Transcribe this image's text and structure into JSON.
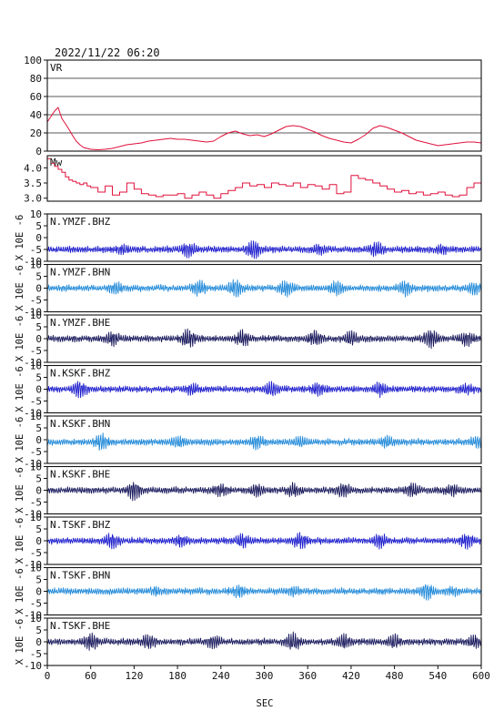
{
  "chart_data": {
    "type": "line",
    "title": "2022/11/22 06:20",
    "xlabel": "SEC",
    "xlim": [
      0,
      600
    ],
    "xticks": [
      0,
      60,
      120,
      180,
      240,
      300,
      360,
      420,
      480,
      540,
      600
    ],
    "vr_panel": {
      "label": "VR",
      "ylim": [
        0,
        100
      ],
      "yticks": [
        0,
        20,
        40,
        60,
        80,
        100
      ],
      "color": "#e0103a",
      "x": [
        0,
        5,
        10,
        15,
        20,
        25,
        30,
        35,
        40,
        45,
        50,
        55,
        60,
        70,
        80,
        90,
        100,
        110,
        120,
        130,
        140,
        150,
        160,
        170,
        180,
        190,
        200,
        210,
        220,
        230,
        240,
        250,
        260,
        270,
        280,
        290,
        300,
        310,
        320,
        330,
        340,
        350,
        360,
        370,
        380,
        390,
        400,
        410,
        420,
        430,
        440,
        450,
        460,
        470,
        480,
        490,
        500,
        510,
        520,
        530,
        540,
        550,
        560,
        570,
        580,
        590,
        600
      ],
      "values": [
        32,
        38,
        44,
        48,
        36,
        30,
        24,
        17,
        11,
        7,
        4,
        3,
        2,
        1.5,
        2,
        3,
        5,
        7,
        8,
        9,
        11,
        12,
        13,
        14,
        13,
        13,
        12,
        11,
        10,
        11,
        16,
        20,
        22,
        19,
        17,
        18,
        16,
        19,
        23,
        27,
        28,
        27,
        24,
        21,
        17,
        14,
        12,
        10,
        9,
        13,
        18,
        25,
        28,
        26,
        23,
        20,
        16,
        12,
        10,
        8,
        6,
        7,
        8,
        9,
        10,
        10,
        9
      ]
    },
    "mw_panel": {
      "label": "Mw",
      "ylim": [
        2.9,
        4.4
      ],
      "yticks": [
        3.0,
        3.5,
        4.0
      ],
      "ytick_labels": [
        "3.0",
        "3.5",
        "4.0"
      ],
      "color": "#e0103a",
      "x": [
        0,
        5,
        10,
        15,
        20,
        25,
        30,
        35,
        40,
        45,
        50,
        55,
        60,
        70,
        80,
        90,
        100,
        110,
        120,
        130,
        140,
        150,
        160,
        170,
        180,
        190,
        200,
        210,
        220,
        230,
        240,
        250,
        260,
        270,
        280,
        290,
        300,
        310,
        320,
        330,
        340,
        350,
        360,
        370,
        380,
        390,
        400,
        410,
        420,
        430,
        440,
        450,
        460,
        470,
        480,
        490,
        500,
        510,
        520,
        530,
        540,
        550,
        560,
        570,
        580,
        590,
        600
      ],
      "values": [
        4.3,
        4.15,
        4.05,
        3.95,
        3.85,
        3.7,
        3.6,
        3.55,
        3.5,
        3.45,
        3.5,
        3.4,
        3.35,
        3.2,
        3.4,
        3.1,
        3.2,
        3.5,
        3.3,
        3.15,
        3.1,
        3.05,
        3.1,
        3.1,
        3.15,
        3.0,
        3.1,
        3.2,
        3.1,
        3.0,
        3.15,
        3.25,
        3.35,
        3.5,
        3.4,
        3.45,
        3.35,
        3.5,
        3.45,
        3.4,
        3.5,
        3.35,
        3.45,
        3.4,
        3.3,
        3.45,
        3.15,
        3.2,
        3.75,
        3.65,
        3.6,
        3.5,
        3.4,
        3.3,
        3.2,
        3.25,
        3.15,
        3.2,
        3.1,
        3.15,
        3.2,
        3.1,
        3.05,
        3.1,
        3.35,
        3.5,
        3.4
      ]
    },
    "trace_panels": {
      "ylim": [
        -10,
        10
      ],
      "yticks": [
        -10,
        -5,
        0,
        5,
        10
      ],
      "ytick_labels": [
        "-10",
        "-5",
        "0",
        "5",
        "10"
      ],
      "ylabel": "X 10E -6",
      "colors": {
        "bhz": "#1a1acc",
        "bhn": "#1e88d8",
        "bhe": "#15155a"
      },
      "series": [
        {
          "name": "N.YMZF.BHZ",
          "offset": -5,
          "color_key": "bhz",
          "seed": 11,
          "bursts": [
            [
              105,
              1.2
            ],
            [
              195,
              2.5
            ],
            [
              285,
              3.2
            ],
            [
              375,
              1.5
            ],
            [
              455,
              2.2
            ],
            [
              545,
              1.2
            ]
          ]
        },
        {
          "name": "N.YMZF.BHN",
          "offset": 0,
          "color_key": "bhn",
          "seed": 23,
          "bursts": [
            [
              95,
              1.6
            ],
            [
              210,
              2.6
            ],
            [
              260,
              2.8
            ],
            [
              330,
              2.8
            ],
            [
              400,
              2.2
            ],
            [
              495,
              2.5
            ],
            [
              590,
              1.8
            ]
          ]
        },
        {
          "name": "N.YMZF.BHE",
          "offset": 0,
          "color_key": "bhe",
          "seed": 37,
          "bursts": [
            [
              90,
              2.2
            ],
            [
              195,
              3.2
            ],
            [
              270,
              2.6
            ],
            [
              370,
              2.4
            ],
            [
              420,
              2.1
            ],
            [
              530,
              3.0
            ],
            [
              580,
              2.2
            ]
          ]
        },
        {
          "name": "N.KSKF.BHZ",
          "offset": 0,
          "color_key": "bhz",
          "seed": 41,
          "bursts": [
            [
              45,
              3.0
            ],
            [
              200,
              1.8
            ],
            [
              310,
              2.4
            ],
            [
              375,
              2.0
            ],
            [
              460,
              2.0
            ],
            [
              580,
              1.5
            ]
          ]
        },
        {
          "name": "N.KSKF.BHN",
          "offset": -1,
          "color_key": "bhn",
          "seed": 53,
          "bursts": [
            [
              75,
              2.6
            ],
            [
              180,
              1.6
            ],
            [
              290,
              2.2
            ],
            [
              350,
              1.5
            ],
            [
              470,
              1.8
            ],
            [
              595,
              1.6
            ]
          ]
        },
        {
          "name": "N.KSKF.BHE",
          "offset": 0,
          "color_key": "bhe",
          "seed": 67,
          "bursts": [
            [
              120,
              3.2
            ],
            [
              240,
              2.0
            ],
            [
              290,
              1.8
            ],
            [
              340,
              2.2
            ],
            [
              410,
              2.4
            ],
            [
              505,
              2.0
            ],
            [
              560,
              1.6
            ]
          ]
        },
        {
          "name": "N.TSKF.BHZ",
          "offset": 0,
          "color_key": "bhz",
          "seed": 79,
          "bursts": [
            [
              90,
              2.4
            ],
            [
              185,
              1.6
            ],
            [
              270,
              2.2
            ],
            [
              350,
              2.6
            ],
            [
              460,
              2.2
            ],
            [
              580,
              2.4
            ]
          ]
        },
        {
          "name": "N.TSKF.BHN",
          "offset": 0,
          "color_key": "bhn",
          "seed": 83,
          "bursts": [
            [
              150,
              1.0
            ],
            [
              265,
              1.8
            ],
            [
              340,
              1.2
            ],
            [
              525,
              2.8
            ],
            [
              560,
              1.0
            ]
          ]
        },
        {
          "name": "N.TSKF.BHE",
          "offset": 0,
          "color_key": "bhe",
          "seed": 97,
          "bursts": [
            [
              60,
              2.6
            ],
            [
              140,
              2.2
            ],
            [
              230,
              2.0
            ],
            [
              340,
              3.0
            ],
            [
              410,
              2.2
            ],
            [
              480,
              2.0
            ],
            [
              590,
              2.0
            ]
          ]
        }
      ]
    }
  }
}
